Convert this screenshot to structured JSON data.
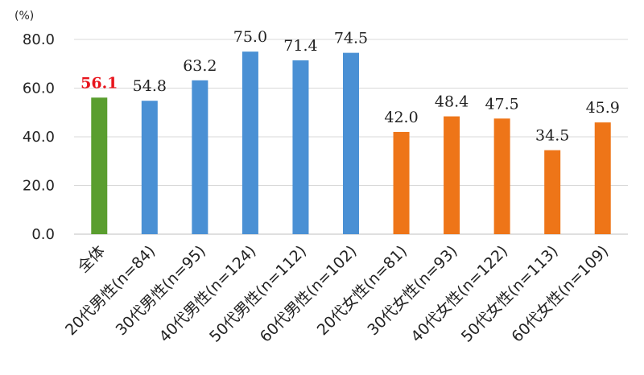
{
  "chart_data": {
    "type": "bar",
    "unit_label": "(%)",
    "ylim": [
      0,
      80
    ],
    "yticks": [
      "0.0",
      "20.0",
      "40.0",
      "60.0",
      "80.0"
    ],
    "ytick_values": [
      0,
      20,
      40,
      60,
      80
    ],
    "grid": true,
    "categories": [
      "全体",
      "20代男性(n=84)",
      "30代男性(n=95)",
      "40代男性(n=124)",
      "50代男性(n=112)",
      "60代男性(n=102)",
      "20代女性(n=81)",
      "30代女性(n=93)",
      "40代女性(n=122)",
      "50代女性(n=113)",
      "60代女性(n=109)"
    ],
    "values": [
      56.1,
      54.8,
      63.2,
      75.0,
      71.4,
      74.5,
      42.0,
      48.4,
      47.5,
      34.5,
      45.9
    ],
    "value_labels": [
      "56.1",
      "54.8",
      "63.2",
      "75.0",
      "71.4",
      "74.5",
      "42.0",
      "48.4",
      "47.5",
      "34.5",
      "45.9"
    ],
    "bar_colors": [
      "#5a9e2f",
      "#4a90d4",
      "#4a90d4",
      "#4a90d4",
      "#4a90d4",
      "#4a90d4",
      "#ee7518",
      "#ee7518",
      "#ee7518",
      "#ee7518",
      "#ee7518"
    ],
    "highlight_label_color": "#e8141c"
  }
}
